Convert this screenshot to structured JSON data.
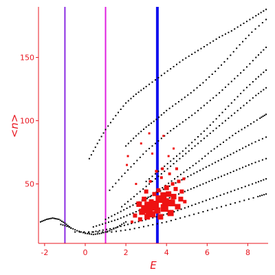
{
  "chart_data": {
    "type": "scatter",
    "title": "",
    "xlabel": "E",
    "ylabel": "<n>",
    "xlim": [
      -2.3,
      9.0
    ],
    "ylim": [
      3,
      190
    ],
    "xticks": [
      "-2",
      "0",
      "2",
      "4",
      "6",
      "8"
    ],
    "xtick_values": [
      -2,
      0,
      2,
      4,
      6,
      8
    ],
    "yticks": [
      "50",
      "100",
      "150"
    ],
    "ytick_values": [
      50,
      100,
      150
    ],
    "grid": false,
    "axis_color": "#e8141e",
    "vertical_lines": [
      {
        "x": -1.0,
        "color": "#8a2be2"
      },
      {
        "x": 1.0,
        "color": "#e01ee0"
      },
      {
        "x": 3.55,
        "color": "#1010ee"
      }
    ],
    "series": [
      {
        "color": "#000000",
        "marker": "small dot",
        "bands": [
          {
            "x": [
              -2.2,
              -1.9,
              -1.6,
              -1.3,
              -1.0,
              -0.7
            ],
            "y": [
              20,
              22,
              23,
              22,
              19,
              15
            ]
          },
          {
            "x": [
              -1.2,
              -0.8,
              -0.4,
              0.0,
              0.4,
              0.8,
              1.2,
              1.6,
              2.0
            ],
            "y": [
              18,
              16,
              13,
              11,
              10,
              11,
              13,
              16,
              20
            ]
          },
          {
            "x": [
              0.2,
              0.6,
              1.0,
              1.5,
              2.0,
              2.5,
              3.0,
              3.6,
              4.2,
              4.8,
              5.4,
              6.0,
              6.6,
              7.2,
              7.8,
              8.4,
              8.9
            ],
            "y": [
              70,
              82,
              93,
              104,
              114,
              121,
              127,
              134,
              141,
              148,
              154,
              160,
              166,
              171,
              177,
              183,
              188
            ]
          },
          {
            "x": [
              2.0,
              2.5,
              3.0,
              3.5,
              4.0,
              4.6,
              5.2,
              5.8,
              6.4,
              7.0,
              7.6,
              8.2,
              8.9
            ],
            "y": [
              80,
              88,
              95,
              101,
              108,
              115,
              122,
              130,
              139,
              149,
              160,
              170,
              180
            ]
          },
          {
            "x": [
              1.2,
              1.8,
              2.4,
              3.0,
              3.6,
              4.2,
              4.8,
              5.4,
              6.0,
              6.6,
              7.2,
              7.8,
              8.4,
              8.9
            ],
            "y": [
              45,
              56,
              66,
              76,
              84,
              92,
              99,
              106,
              114,
              122,
              131,
              140,
              150,
              158
            ]
          },
          {
            "x": [
              3.0,
              3.6,
              4.2,
              4.8,
              5.4,
              6.0,
              6.6,
              7.2,
              7.8,
              8.4,
              8.9
            ],
            "y": [
              52,
              60,
              68,
              76,
              85,
              94,
              104,
              114,
              124,
              133,
              140
            ]
          },
          {
            "x": [
              1.8,
              2.4,
              3.0,
              3.6,
              4.2,
              4.8,
              5.4,
              6.0,
              6.6,
              7.2,
              7.8,
              8.4,
              8.9
            ],
            "y": [
              32,
              40,
              48,
              56,
              64,
              72,
              80,
              88,
              96,
              104,
              112,
              120,
              126
            ]
          },
          {
            "x": [
              2.6,
              3.2,
              3.8,
              4.4,
              5.0,
              5.6,
              6.2,
              6.8,
              7.4,
              8.0,
              8.6,
              8.9
            ],
            "y": [
              34,
              40,
              47,
              54,
              61,
              68,
              76,
              83,
              90,
              96,
              102,
              105
            ]
          },
          {
            "x": [
              1.0,
              1.6,
              2.2,
              2.8,
              3.4,
              4.0,
              4.6,
              5.2,
              5.8,
              6.4,
              7.0,
              7.6,
              8.2,
              8.9
            ],
            "y": [
              22,
              27,
              32,
              37,
              42,
              47,
              52,
              57,
              62,
              67,
              72,
              77,
              82,
              87
            ]
          },
          {
            "x": [
              0.4,
              1.0,
              1.6,
              2.2,
              2.8,
              3.4,
              4.0,
              4.6,
              5.2,
              5.8,
              6.4,
              7.0,
              7.6,
              8.2,
              8.9
            ],
            "y": [
              16,
              19,
              22,
              26,
              30,
              34,
              38,
              42,
              46,
              50,
              54,
              58,
              62,
              66,
              70
            ]
          },
          {
            "x": [
              0.0,
              0.7,
              1.4,
              2.1,
              2.8,
              3.5,
              4.2,
              4.9,
              5.6,
              6.3,
              7.0,
              7.7,
              8.4,
              8.9
            ],
            "y": [
              11,
              13,
              15,
              18,
              21,
              24,
              27,
              31,
              35,
              39,
              43,
              47,
              51,
              54
            ]
          },
          {
            "x": [
              -0.5,
              0.4,
              1.3,
              2.2,
              3.1,
              4.0,
              4.9,
              5.8,
              6.7,
              7.6,
              8.5,
              8.9
            ],
            "y": [
              12,
              12,
              12,
              14,
              17,
              20,
              24,
              28,
              32,
              36,
              40,
              42
            ]
          }
        ]
      },
      {
        "color": "#ee1111",
        "marker": "filled square",
        "points": [
          [
            2.05,
            65
          ],
          [
            2.1,
            72
          ],
          [
            2.75,
            82
          ],
          [
            3.15,
            90
          ],
          [
            3.3,
            74
          ],
          [
            2.5,
            50
          ],
          [
            2.3,
            20
          ],
          [
            2.45,
            25
          ],
          [
            2.65,
            34
          ],
          [
            2.7,
            22
          ],
          [
            2.8,
            28
          ],
          [
            2.9,
            38
          ],
          [
            2.95,
            30
          ],
          [
            3.0,
            44
          ],
          [
            3.05,
            24
          ],
          [
            3.1,
            33
          ],
          [
            3.15,
            28
          ],
          [
            3.25,
            36
          ],
          [
            3.3,
            26
          ],
          [
            3.35,
            31
          ],
          [
            3.4,
            42
          ],
          [
            3.45,
            34
          ],
          [
            3.55,
            29
          ],
          [
            3.6,
            45
          ],
          [
            3.65,
            38
          ],
          [
            3.7,
            24
          ],
          [
            3.75,
            55
          ],
          [
            3.8,
            62
          ],
          [
            3.85,
            41
          ],
          [
            3.9,
            31
          ],
          [
            3.95,
            36
          ],
          [
            4.0,
            47
          ],
          [
            4.1,
            42
          ],
          [
            4.15,
            58
          ],
          [
            4.2,
            27
          ],
          [
            4.25,
            35
          ],
          [
            4.3,
            50
          ],
          [
            4.35,
            40
          ],
          [
            4.45,
            46
          ],
          [
            4.5,
            62
          ],
          [
            4.55,
            32
          ],
          [
            4.6,
            52
          ],
          [
            4.7,
            38
          ],
          [
            4.75,
            44
          ],
          [
            4.85,
            54
          ],
          [
            4.9,
            36
          ],
          [
            4.35,
            78
          ],
          [
            4.1,
            72
          ],
          [
            3.85,
            88
          ],
          [
            3.5,
            60
          ],
          [
            3.2,
            52
          ]
        ],
        "sizes": [
          3,
          3,
          3,
          3,
          3,
          3,
          4,
          6,
          8,
          6,
          9,
          7,
          12,
          6,
          8,
          11,
          10,
          7,
          9,
          8,
          6,
          10,
          9,
          6,
          11,
          8,
          4,
          4,
          9,
          11,
          10,
          7,
          8,
          4,
          9,
          10,
          5,
          8,
          6,
          4,
          8,
          5,
          7,
          6,
          4,
          5,
          3,
          3,
          3,
          4,
          4
        ]
      }
    ]
  }
}
